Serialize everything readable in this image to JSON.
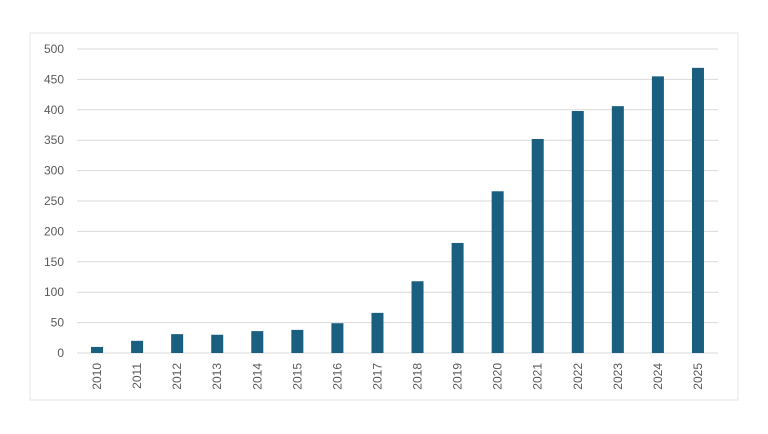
{
  "chart_data": {
    "type": "bar",
    "categories": [
      "2010",
      "2011",
      "2012",
      "2013",
      "2014",
      "2015",
      "2016",
      "2017",
      "2018",
      "2019",
      "2020",
      "2021",
      "2022",
      "2023",
      "2024",
      "2025"
    ],
    "values": [
      10,
      20,
      31,
      30,
      36,
      38,
      49,
      66,
      118,
      181,
      266,
      352,
      398,
      406,
      455,
      469
    ],
    "color": "#1a5e80",
    "ylim": [
      0,
      500
    ],
    "yticks": [
      0,
      50,
      100,
      150,
      200,
      250,
      300,
      350,
      400,
      450,
      500
    ],
    "grid": true
  }
}
